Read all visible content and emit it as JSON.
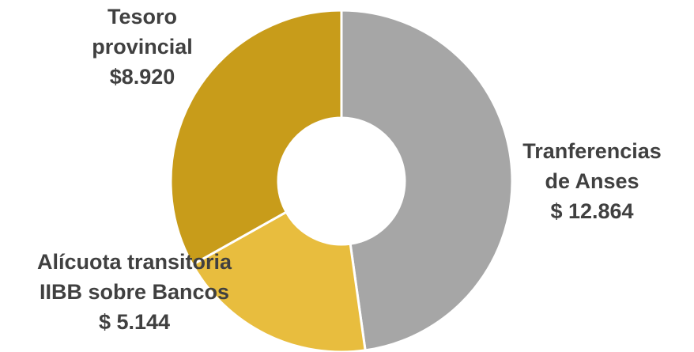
{
  "chart_data": {
    "type": "pie",
    "donut": true,
    "slices": [
      {
        "label_lines": [
          "Tranferencias",
          "de Anses",
          "$ 12.864"
        ],
        "value": 12864,
        "color": "#a6a6a6"
      },
      {
        "label_lines": [
          "Alícuota transitoria",
          "IIBB sobre Bancos",
          "$ 5.144"
        ],
        "value": 5144,
        "color": "#e8bd3e"
      },
      {
        "label_lines": [
          "Tesoro",
          "provincial",
          "$8.920"
        ],
        "value": 8920,
        "color": "#c89c1a"
      }
    ],
    "start_angle_deg": 0,
    "direction": "clockwise",
    "title": "",
    "legend": "none"
  }
}
